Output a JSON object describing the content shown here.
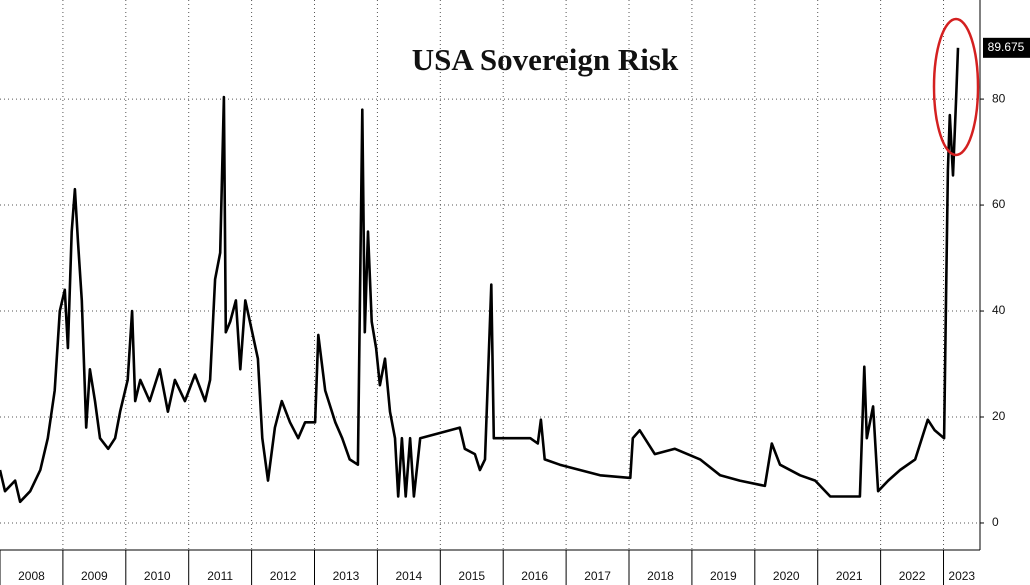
{
  "chart_data": {
    "type": "line",
    "title": "USA Sovereign Risk",
    "series": [
      {
        "name": "USA Sovereign Risk",
        "color": "#000000",
        "x": [
          2008.0,
          2008.08,
          2008.24,
          2008.32,
          2008.48,
          2008.64,
          2008.76,
          2008.87,
          2008.95,
          2009.03,
          2009.08,
          2009.14,
          2009.19,
          2009.24,
          2009.3,
          2009.37,
          2009.43,
          2009.51,
          2009.59,
          2009.72,
          2009.83,
          2009.91,
          2010.03,
          2010.1,
          2010.15,
          2010.23,
          2010.38,
          2010.54,
          2010.67,
          2010.78,
          2010.94,
          2011.1,
          2011.26,
          2011.34,
          2011.42,
          2011.5,
          2011.56,
          2011.59,
          2011.66,
          2011.75,
          2011.82,
          2011.9,
          2012.01,
          2012.1,
          2012.17,
          2012.26,
          2012.37,
          2012.48,
          2012.61,
          2012.74,
          2012.85,
          2013.01,
          2013.06,
          2013.17,
          2013.33,
          2013.44,
          2013.56,
          2013.69,
          2013.76,
          2013.8,
          2013.85,
          2013.91,
          2013.98,
          2014.04,
          2014.12,
          2014.2,
          2014.28,
          2014.33,
          2014.39,
          2014.45,
          2014.52,
          2014.58,
          2014.68,
          2015.0,
          2015.31,
          2015.39,
          2015.55,
          2015.63,
          2015.71,
          2015.81,
          2015.85,
          2016.11,
          2016.43,
          2016.55,
          2016.6,
          2016.66,
          2016.9,
          2017.22,
          2017.54,
          2018.02,
          2018.06,
          2018.17,
          2018.41,
          2018.73,
          2019.13,
          2019.45,
          2019.76,
          2020.16,
          2020.27,
          2020.4,
          2020.72,
          2020.96,
          2021.2,
          2021.67,
          2021.74,
          2021.78,
          2021.88,
          2021.96,
          2022.12,
          2022.31,
          2022.55,
          2022.75,
          2022.86,
          2023.01,
          2023.04,
          2023.07,
          2023.1,
          2023.15,
          2023.2,
          2023.23
        ],
        "values": [
          10,
          6,
          8,
          4,
          6,
          10,
          16,
          25,
          40,
          44,
          33,
          55,
          63,
          53,
          42,
          18,
          29,
          23,
          16,
          14,
          16,
          21,
          27,
          40,
          23,
          27,
          23,
          29,
          21,
          27,
          23,
          28,
          23,
          27,
          46,
          51,
          80.4,
          36,
          38,
          42,
          29,
          42,
          36,
          31,
          16,
          8,
          18,
          23,
          19,
          16,
          19,
          19,
          35.5,
          25,
          19,
          16,
          12,
          11,
          78,
          36,
          55,
          38,
          33,
          26,
          31,
          21,
          16,
          5,
          16,
          5,
          16,
          5,
          16,
          17,
          18,
          14,
          13,
          10,
          12,
          45,
          16,
          16,
          16,
          15,
          19.5,
          12,
          11,
          10,
          9,
          8.5,
          16,
          17.5,
          13,
          14,
          12,
          9,
          8,
          7,
          15,
          11,
          9,
          8,
          5,
          5,
          29.5,
          16,
          22,
          6,
          8,
          10,
          12,
          19.5,
          17.5,
          16,
          42,
          66.6,
          77,
          65.6,
          80,
          89.675
        ]
      }
    ],
    "xlim": [
      2008,
      2023.58
    ],
    "xticks": [
      2008,
      2009,
      2010,
      2011,
      2012,
      2013,
      2014,
      2015,
      2016,
      2017,
      2018,
      2019,
      2020,
      2021,
      2022,
      2023
    ],
    "ylim": [
      -5.1,
      98.7
    ],
    "yticks": [
      0,
      20,
      40,
      60,
      80
    ],
    "grid": true
  }
}
